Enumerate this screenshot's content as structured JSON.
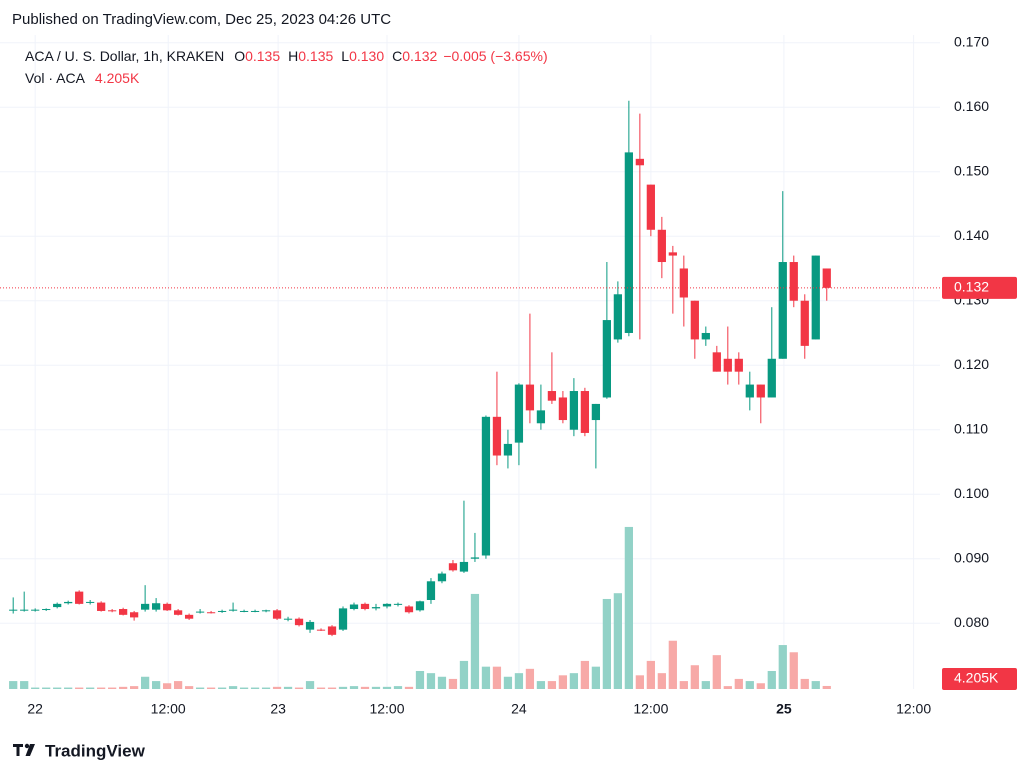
{
  "published": "Published on TradingView.com, Dec 25, 2023 04:26 UTC",
  "brand": "TradingView",
  "chart_data": {
    "type": "candlestick",
    "legend": {
      "symbol": "ACA / U. S. Dollar, 1h, KRAKEN",
      "fields": [
        {
          "key": "O",
          "value": "0.135"
        },
        {
          "key": "H",
          "value": "0.135"
        },
        {
          "key": "L",
          "value": "0.130"
        },
        {
          "key": "C",
          "value": "0.132"
        }
      ],
      "change": "−0.005 (−3.65%)"
    },
    "volume_name": "Vol · ACA",
    "volume_last_label": "4.205K",
    "up_color": "#089981",
    "down_color": "#f23645",
    "volume_up_color": "#92d2c7",
    "volume_down_color": "#f7a9a7",
    "grid": true,
    "xlim": [
      -1.2,
      84.3
    ],
    "xticks": [
      {
        "value": 2,
        "label": "22"
      },
      {
        "value": 14.1,
        "label": "12:00"
      },
      {
        "value": 24.1,
        "label": "23"
      },
      {
        "value": 34,
        "label": "12:00"
      },
      {
        "value": 46,
        "label": "24"
      },
      {
        "value": 58,
        "label": "12:00"
      },
      {
        "value": 70.1,
        "label": "25"
      },
      {
        "value": 81.9,
        "label": "12:00"
      }
    ],
    "ylim": [
      0.0698,
      0.1712
    ],
    "yticks": [
      {
        "value": 0.08,
        "label": "0.080"
      },
      {
        "value": 0.09,
        "label": "0.090"
      },
      {
        "value": 0.1,
        "label": "0.100"
      },
      {
        "value": 0.11,
        "label": "0.110"
      },
      {
        "value": 0.12,
        "label": "0.120"
      },
      {
        "value": 0.13,
        "label": "0.130"
      },
      {
        "value": 0.14,
        "label": "0.140"
      },
      {
        "value": 0.15,
        "label": "0.150"
      },
      {
        "value": 0.16,
        "label": "0.160"
      },
      {
        "value": 0.17,
        "label": "0.170"
      }
    ],
    "volume_ylim": [
      0,
      908
    ],
    "x": [
      0,
      1,
      2,
      3,
      4,
      5,
      6,
      7,
      8,
      9,
      10,
      11,
      12,
      13,
      14,
      15,
      16,
      17,
      18,
      19,
      20,
      21,
      22,
      23,
      24,
      25,
      26,
      27,
      28,
      29,
      30,
      31,
      32,
      33,
      34,
      35,
      36,
      37,
      38,
      39,
      40,
      41,
      42,
      43,
      44,
      45,
      46,
      47,
      48,
      49,
      50,
      51,
      52,
      53,
      54,
      55,
      56,
      57,
      58,
      59,
      60,
      61,
      62,
      63,
      64,
      65,
      66,
      67,
      68,
      69,
      70,
      71,
      72,
      73,
      74
    ],
    "open": [
      0.082,
      0.082,
      0.0821,
      0.0821,
      0.0825,
      0.0831,
      0.0849,
      0.0832,
      0.0832,
      0.082,
      0.0822,
      0.0817,
      0.0821,
      0.0821,
      0.083,
      0.082,
      0.0813,
      0.0817,
      0.0817,
      0.0818,
      0.082,
      0.0819,
      0.0819,
      0.0819,
      0.082,
      0.0806,
      0.0807,
      0.079,
      0.079,
      0.0795,
      0.079,
      0.0822,
      0.083,
      0.0823,
      0.0826,
      0.0829,
      0.0826,
      0.082,
      0.0836,
      0.0865,
      0.0893,
      0.088,
      0.09,
      0.0905,
      0.112,
      0.106,
      0.108,
      0.117,
      0.111,
      0.116,
      0.115,
      0.11,
      0.116,
      0.1115,
      0.115,
      0.124,
      0.125,
      0.152,
      0.148,
      0.141,
      0.1375,
      0.135,
      0.13,
      0.124,
      0.122,
      0.121,
      0.121,
      0.115,
      0.117,
      0.115,
      0.121,
      0.136,
      0.13,
      0.124,
      0.135
    ],
    "high": [
      0.084,
      0.0849,
      0.0823,
      0.0823,
      0.0832,
      0.0835,
      0.0851,
      0.0836,
      0.0834,
      0.0822,
      0.0824,
      0.0819,
      0.0859,
      0.0839,
      0.0832,
      0.0822,
      0.0815,
      0.0822,
      0.0819,
      0.0821,
      0.0832,
      0.0821,
      0.0821,
      0.0821,
      0.0822,
      0.081,
      0.0809,
      0.0805,
      0.0792,
      0.0797,
      0.0826,
      0.0832,
      0.0832,
      0.083,
      0.0831,
      0.0832,
      0.0828,
      0.0835,
      0.087,
      0.088,
      0.0898,
      0.099,
      0.094,
      0.1122,
      0.119,
      0.11,
      0.1172,
      0.128,
      0.117,
      0.122,
      0.116,
      0.118,
      0.1165,
      0.114,
      0.136,
      0.133,
      0.161,
      0.159,
      0.148,
      0.143,
      0.1385,
      0.137,
      0.13,
      0.126,
      0.123,
      0.126,
      0.122,
      0.119,
      0.117,
      0.129,
      0.147,
      0.137,
      0.131,
      0.137,
      0.135
    ],
    "low": [
      0.0815,
      0.0818,
      0.0818,
      0.0819,
      0.0823,
      0.0829,
      0.0829,
      0.0829,
      0.0818,
      0.0817,
      0.0812,
      0.0804,
      0.0818,
      0.0818,
      0.0819,
      0.0812,
      0.0805,
      0.0815,
      0.0815,
      0.0816,
      0.0818,
      0.0817,
      0.0817,
      0.0817,
      0.0805,
      0.0803,
      0.0795,
      0.0785,
      0.0788,
      0.078,
      0.0788,
      0.082,
      0.082,
      0.082,
      0.0823,
      0.0826,
      0.0815,
      0.0818,
      0.083,
      0.0862,
      0.088,
      0.0878,
      0.0895,
      0.09,
      0.1045,
      0.104,
      0.1045,
      0.111,
      0.11,
      0.114,
      0.111,
      0.109,
      0.109,
      0.104,
      0.1148,
      0.1235,
      0.1245,
      0.124,
      0.14,
      0.1335,
      0.128,
      0.126,
      0.121,
      0.123,
      0.119,
      0.117,
      0.117,
      0.113,
      0.111,
      0.115,
      0.121,
      0.129,
      0.121,
      0.124,
      0.13
    ],
    "close": [
      0.0821,
      0.0821,
      0.0821,
      0.0822,
      0.083,
      0.0833,
      0.083,
      0.0833,
      0.0819,
      0.0819,
      0.0813,
      0.0809,
      0.083,
      0.0831,
      0.082,
      0.0813,
      0.0807,
      0.0818,
      0.0816,
      0.0819,
      0.0821,
      0.0819,
      0.0819,
      0.082,
      0.0807,
      0.0807,
      0.0797,
      0.0802,
      0.0789,
      0.0782,
      0.0823,
      0.0829,
      0.0822,
      0.0825,
      0.083,
      0.083,
      0.0817,
      0.0834,
      0.0865,
      0.0877,
      0.0882,
      0.0895,
      0.0902,
      0.112,
      0.106,
      0.1078,
      0.117,
      0.113,
      0.113,
      0.1145,
      0.1115,
      0.116,
      0.1095,
      0.114,
      0.127,
      0.131,
      0.153,
      0.151,
      0.141,
      0.136,
      0.137,
      0.1305,
      0.124,
      0.125,
      0.119,
      0.119,
      0.119,
      0.117,
      0.115,
      0.121,
      0.136,
      0.13,
      0.123,
      0.137,
      0.132
    ],
    "volume": [
      11,
      11,
      2,
      2,
      2,
      2,
      2,
      2,
      2,
      2,
      3,
      4,
      17,
      11,
      8,
      11,
      4,
      2,
      2,
      2,
      4,
      2,
      2,
      2,
      3,
      3,
      2,
      11,
      2,
      2,
      3,
      4,
      3,
      3,
      3,
      4,
      3,
      25,
      22,
      17,
      14,
      39,
      132,
      31,
      31,
      17,
      22,
      28,
      11,
      11,
      19,
      22,
      39,
      31,
      125,
      133,
      225,
      19,
      39,
      22,
      67,
      11,
      33,
      11,
      47,
      4,
      14,
      11,
      8,
      25,
      61,
      51,
      14,
      11,
      4.205
    ]
  }
}
